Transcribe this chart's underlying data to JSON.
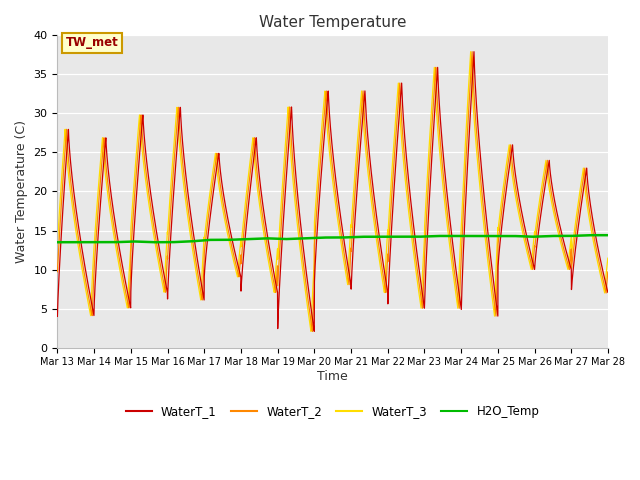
{
  "title": "Water Temperature",
  "xlabel": "Time",
  "ylabel": "Water Temperature (C)",
  "ylim": [
    0,
    40
  ],
  "plot_bg_color": "#e8e8e8",
  "fig_bg_color": "#ffffff",
  "line_colors": {
    "WaterT_1": "#cc0000",
    "WaterT_2": "#ff8800",
    "WaterT_3": "#ffdd00",
    "H2O_Temp": "#00bb00"
  },
  "annotation_text": "TW_met",
  "annotation_bg": "#ffffcc",
  "annotation_border": "#cc9900",
  "annotation_text_color": "#990000",
  "peaks": [
    28,
    27,
    30,
    31,
    25,
    27,
    31,
    33,
    33,
    34,
    36,
    38,
    26,
    24,
    23
  ],
  "troughs": [
    4,
    5,
    7,
    6,
    9,
    7,
    2,
    8,
    7,
    5,
    5,
    4,
    10,
    10,
    7
  ],
  "peak_pos": [
    0.3,
    0.32,
    0.33,
    0.35,
    0.4,
    0.42,
    0.38,
    0.38,
    0.38,
    0.38,
    0.36,
    0.35,
    0.4,
    0.4,
    0.42
  ],
  "orange_lag": 0.05,
  "yellow_lag": 0.09,
  "h2o_pts": [
    13.5,
    13.5,
    13.5,
    13.5,
    13.6,
    13.5,
    13.5,
    13.6,
    13.8,
    13.8,
    13.9,
    14.0,
    13.9,
    14.0,
    14.1,
    14.1,
    14.2,
    14.2,
    14.2,
    14.2,
    14.3,
    14.3,
    14.3,
    14.3,
    14.3,
    14.2,
    14.3,
    14.3,
    14.4,
    14.4
  ],
  "tick_days": [
    13,
    14,
    15,
    16,
    17,
    18,
    19,
    20,
    21,
    22,
    23,
    24,
    25,
    26,
    27,
    28
  ],
  "figsize": [
    6.4,
    4.8
  ],
  "dpi": 100
}
